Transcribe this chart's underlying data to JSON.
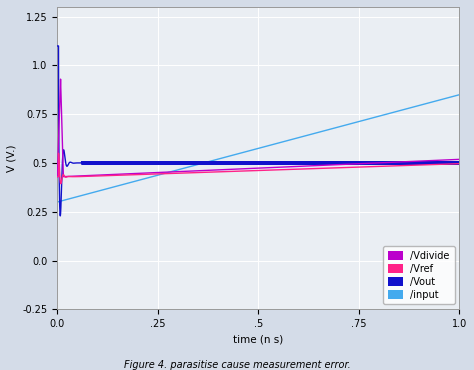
{
  "xlabel": "time (n s)",
  "ylabel": "V (V.)",
  "xlim": [
    0.0,
    1.0
  ],
  "ylim": [
    -0.25,
    1.3
  ],
  "yticks": [
    -0.25,
    0.0,
    0.25,
    0.5,
    0.75,
    1.0,
    1.25
  ],
  "ytick_labels": [
    "-0.25",
    "0.0",
    "0.25",
    "0.5",
    "0.75",
    "1.0",
    "1.25"
  ],
  "xticks": [
    0.0,
    0.25,
    0.5,
    0.75,
    1.0
  ],
  "xtick_labels": [
    "0.0",
    ".25",
    ".5",
    ".75",
    "1.0"
  ],
  "bg_color": "#eaeef3",
  "fig_color": "#d4dce8",
  "grid_color": "#ffffff",
  "legend_labels": [
    "/Vdivide",
    "/Vref",
    "/Vout",
    "/input"
  ],
  "legend_colors": [
    "#bb00cc",
    "#ff2288",
    "#1111cc",
    "#44aaee"
  ],
  "vdivide_color": "#bb00cc",
  "vref_color": "#ff2288",
  "vout_color": "#1111cc",
  "input_color": "#44aaee",
  "caption": "Figure 4. parasitise cause measurement error."
}
